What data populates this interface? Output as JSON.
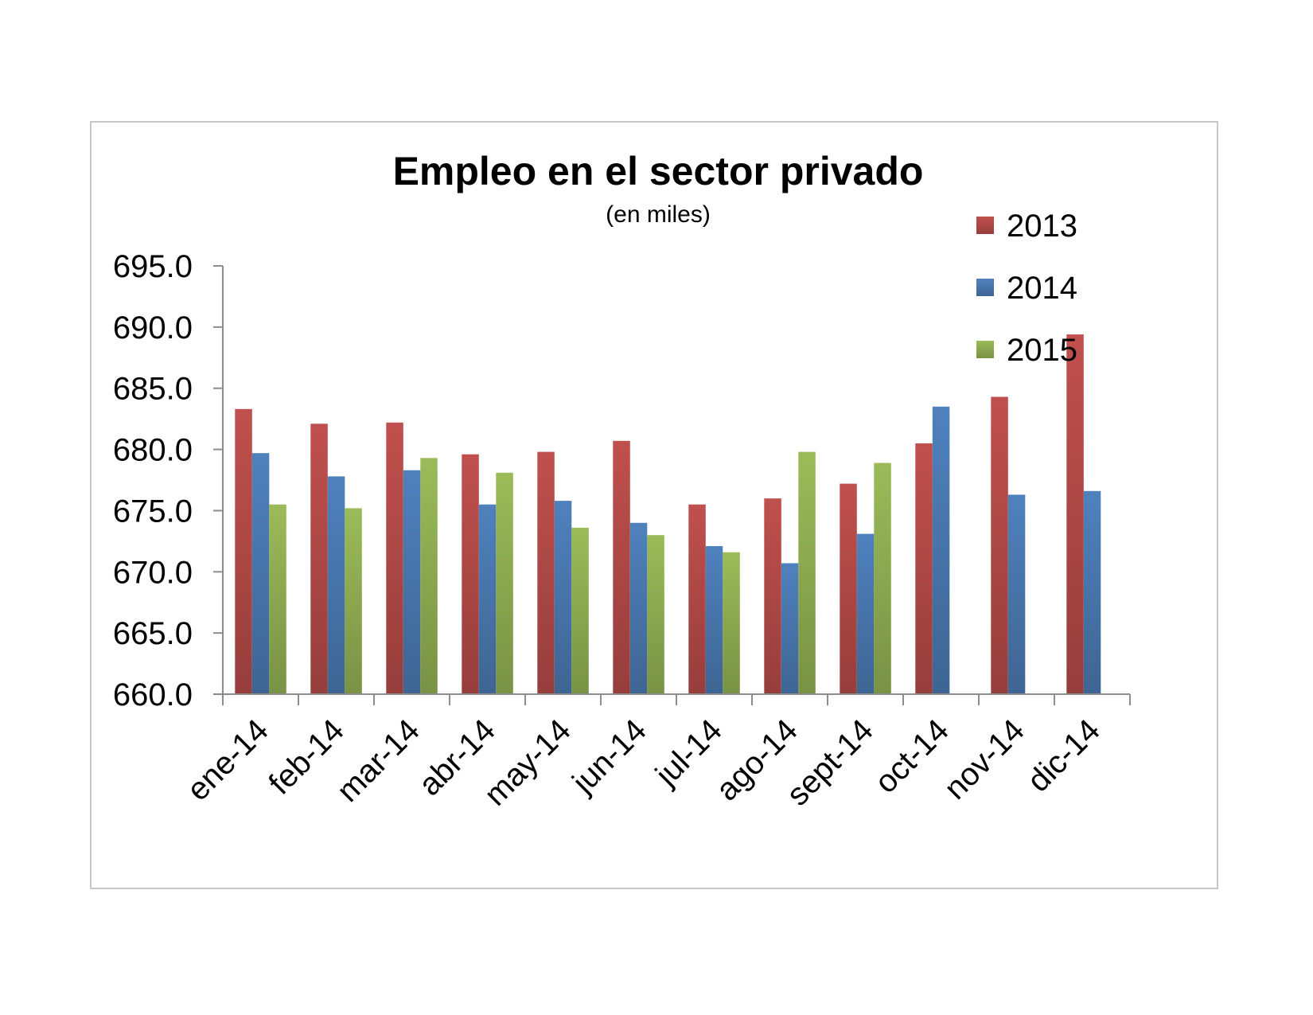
{
  "chart_data": {
    "type": "bar",
    "title": "Empleo en el sector privado",
    "subtitle": "(en miles)",
    "categories": [
      "ene-14",
      "feb-14",
      "mar-14",
      "abr-14",
      "may-14",
      "jun-14",
      "jul-14",
      "ago-14",
      "sept-14",
      "oct-14",
      "nov-14",
      "dic-14"
    ],
    "series": [
      {
        "name": "2013",
        "color": "#c0504d",
        "values": [
          683.3,
          682.1,
          682.2,
          679.6,
          679.8,
          680.7,
          675.5,
          676.0,
          677.2,
          680.5,
          684.3,
          689.4
        ]
      },
      {
        "name": "2014",
        "color": "#4f81bd",
        "values": [
          679.7,
          677.8,
          678.3,
          675.5,
          675.8,
          674.0,
          672.1,
          670.7,
          673.1,
          683.5,
          676.3,
          676.6
        ]
      },
      {
        "name": "2015",
        "color": "#9bbb59",
        "values": [
          675.5,
          675.2,
          679.3,
          678.1,
          673.6,
          673.0,
          671.6,
          679.8,
          678.9,
          null,
          null,
          null
        ]
      }
    ],
    "yticks": [
      "695.0",
      "690.0",
      "685.0",
      "680.0",
      "675.0",
      "670.0",
      "665.0",
      "660.0"
    ],
    "ylim": [
      660,
      695
    ],
    "grid": false,
    "legend": "top-right"
  }
}
